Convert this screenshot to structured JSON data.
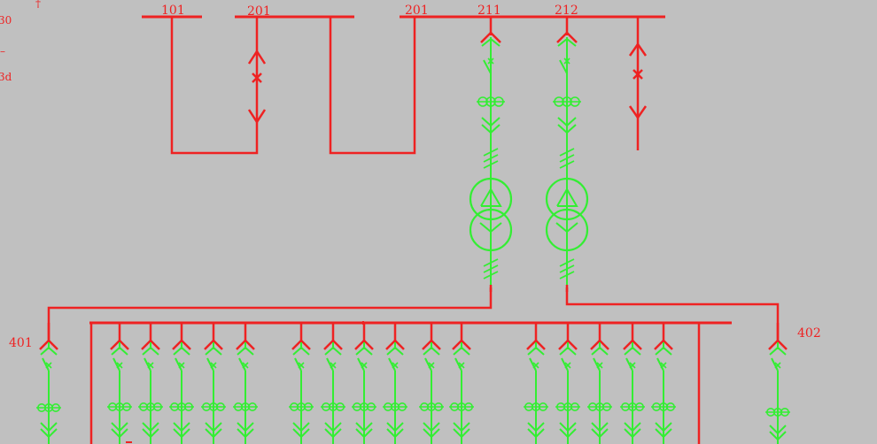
{
  "colors": {
    "background": "#c0c0c0",
    "high_voltage": "#ee2222",
    "equipment": "#33ee33"
  },
  "labels": {
    "bus_101": "101",
    "bus_201_left": "201",
    "bus_201_right": "201",
    "feeder_211": "211",
    "feeder_212": "212",
    "feeder_401": "401",
    "feeder_402": "402"
  },
  "edge_fragments": {
    "top": "†",
    "upper": "30",
    "dash": "–",
    "lower": "3d"
  },
  "icons": {
    "breaker": "breaker-x-icon",
    "disconnect": "disconnect-switch-icon",
    "current_transformer": "current-transformer-icon",
    "transformer": "two-winding-transformer-icon",
    "ground": "ground-symbol-icon"
  }
}
